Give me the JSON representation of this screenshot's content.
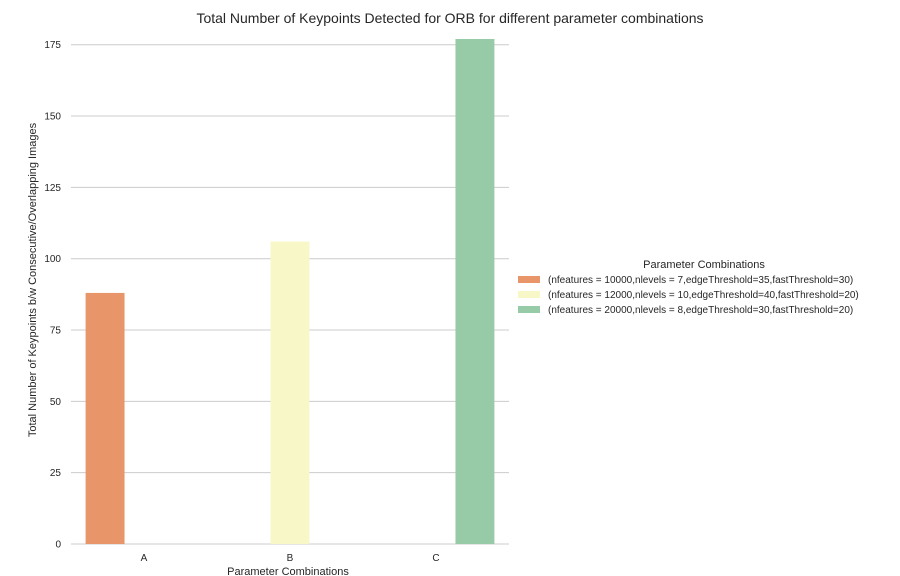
{
  "chart_data": {
    "type": "bar",
    "title": "Total Number of Keypoints Detected for ORB for different parameter combinations",
    "xlabel": "Parameter Combinations",
    "ylabel": "Total Number of Keypoints b/w Consecutive/Overlapping Images",
    "categories": [
      "A",
      "B",
      "C"
    ],
    "ylim": [
      0,
      177
    ],
    "yticks": [
      0,
      25,
      50,
      75,
      100,
      125,
      150,
      175
    ],
    "grid": "horizontal",
    "legend": {
      "title": "Parameter Combinations",
      "placement": "right",
      "entries": [
        "(nfeatures = 10000,nlevels = 7,edgeThreshold=35,fastThreshold=30)",
        "(nfeatures = 12000,nlevels = 10,edgeThreshold=40,fastThreshold=20)",
        "(nfeatures = 20000,nlevels = 8,edgeThreshold=30,fastThreshold=20)"
      ]
    },
    "series": [
      {
        "name": "(nfeatures = 10000,nlevels = 7,edgeThreshold=35,fastThreshold=30)",
        "color": "#e8956a",
        "values": [
          88,
          null,
          null
        ]
      },
      {
        "name": "(nfeatures = 12000,nlevels = 10,edgeThreshold=40,fastThreshold=20)",
        "color": "#f8f7c8",
        "values": [
          null,
          106,
          null
        ]
      },
      {
        "name": "(nfeatures = 20000,nlevels = 8,edgeThreshold=30,fastThreshold=20)",
        "color": "#97cba8",
        "values": [
          null,
          null,
          177
        ]
      }
    ]
  }
}
